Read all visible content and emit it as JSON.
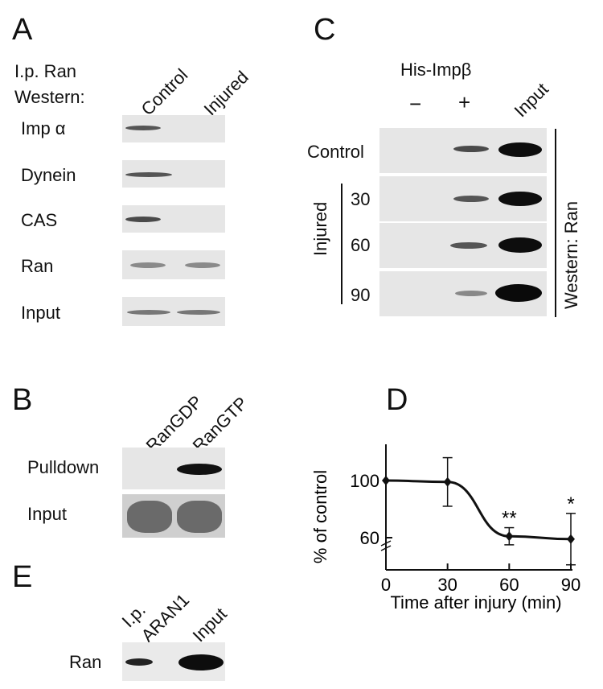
{
  "panelA": {
    "letter": "A",
    "ip_label": "I.p. Ran",
    "western_label": "Western:",
    "col_control": "Control",
    "col_injured": "Injured",
    "rows": [
      "Imp α",
      "Dynein",
      "CAS",
      "Ran",
      "Input"
    ]
  },
  "panelB": {
    "letter": "B",
    "col_rangdp": "RanGDP",
    "col_rangtp": "RanGTP",
    "rows": [
      "Pulldown",
      "Input"
    ]
  },
  "panelC": {
    "letter": "C",
    "his_label": "His-Impβ",
    "minus": "−",
    "plus": "+",
    "input_label": "Input",
    "control_label": "Control",
    "injured_label": "Injured",
    "times": [
      "30",
      "60",
      "90"
    ],
    "western_label": "Western: Ran"
  },
  "panelE": {
    "letter": "E",
    "col_ip": "I.p.",
    "col_aran": "ARAN1",
    "col_input": "Input",
    "row": "Ran"
  },
  "chart_data": {
    "type": "line",
    "panel_letter": "D",
    "xlabel": "Time after injury (min)",
    "ylabel": "% of control",
    "x_ticks": [
      "0",
      "30",
      "60",
      "90"
    ],
    "y_ticks": [
      "100",
      "60"
    ],
    "xlim": [
      0,
      90
    ],
    "ylim": [
      40,
      110
    ],
    "y_axis_break": true,
    "x": [
      0,
      30,
      60,
      90
    ],
    "y": [
      100,
      99,
      61,
      59
    ],
    "error": [
      0,
      17,
      6,
      18
    ],
    "annotations": [
      {
        "x": 60,
        "text": "**"
      },
      {
        "x": 90,
        "text": "*"
      }
    ]
  }
}
